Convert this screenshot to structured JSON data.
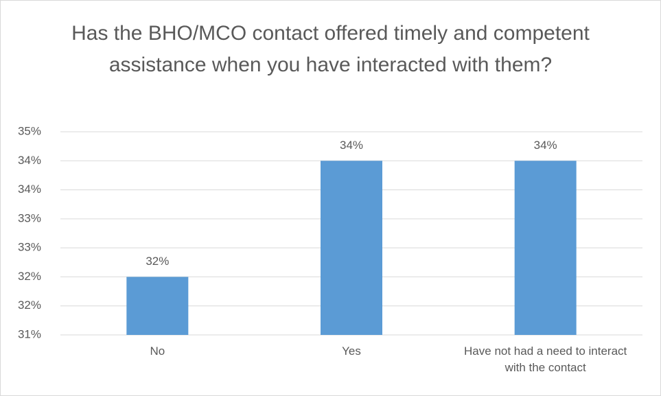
{
  "chart_data": {
    "type": "bar",
    "title": "Has the BHO/MCO contact offered timely and competent assistance when you have interacted with them?",
    "categories": [
      "No",
      "Yes",
      "Have not had a need to interact with the contact"
    ],
    "values": [
      32,
      34,
      34
    ],
    "value_labels": [
      "32%",
      "34%",
      "34%"
    ],
    "color": "#5b9bd5",
    "ylim": [
      31,
      34.5
    ],
    "yticks": [
      {
        "value": 31,
        "label": "31%"
      },
      {
        "value": 31.5,
        "label": "32%"
      },
      {
        "value": 32,
        "label": "32%"
      },
      {
        "value": 32.5,
        "label": "33%"
      },
      {
        "value": 33,
        "label": "33%"
      },
      {
        "value": 33.5,
        "label": "34%"
      },
      {
        "value": 34,
        "label": "34%"
      },
      {
        "value": 34.5,
        "label": "35%"
      }
    ],
    "grid": true
  }
}
